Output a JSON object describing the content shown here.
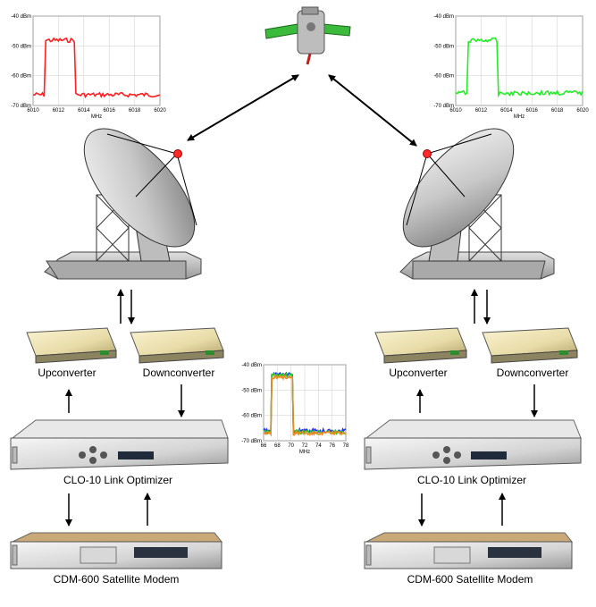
{
  "labels": {
    "left_up": "Upconverter",
    "left_down": "Downconverter",
    "right_up": "Upconverter",
    "right_down": "Downconverter",
    "left_optimizer": "CLO-10 Link Optimizer",
    "right_optimizer": "CLO-10 Link Optimizer",
    "left_modem": "CDM-600 Satellite Modem",
    "right_modem": "CDM-600 Satellite Modem"
  },
  "spectrum_left": {
    "yticks": [
      "-40 dBm",
      "-50 dBm",
      "-60 dBm",
      "-70 dBm"
    ],
    "xticks": [
      "6010",
      "6012",
      "6014",
      "6016",
      "6018",
      "6020"
    ],
    "xlabel": "MHz",
    "color": "#ff2020"
  },
  "spectrum_right": {
    "yticks": [
      "-40 dBm",
      "-50 dBm",
      "-60 dBm",
      "-70 dBm"
    ],
    "xticks": [
      "6010",
      "6012",
      "6014",
      "6016",
      "6018",
      "6020"
    ],
    "xlabel": "MHz",
    "color": "#22ee22"
  },
  "spectrum_center": {
    "yticks": [
      "-40 dBm",
      "-50 dBm",
      "-60 dBm",
      "-70 dBm"
    ],
    "xticks": [
      "66",
      "68",
      "70",
      "72",
      "74",
      "76",
      "78"
    ],
    "xlabel": "MHz",
    "colors": [
      "#2233ee",
      "#22cc22",
      "#ee8822"
    ]
  }
}
